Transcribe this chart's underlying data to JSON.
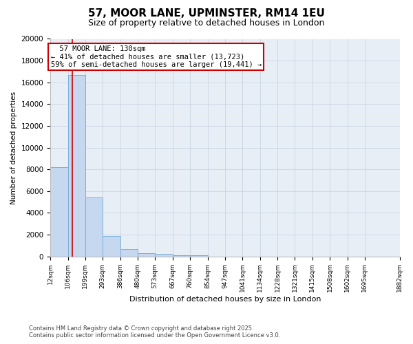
{
  "title": "57, MOOR LANE, UPMINSTER, RM14 1EU",
  "subtitle": "Size of property relative to detached houses in London",
  "xlabel": "Distribution of detached houses by size in London",
  "ylabel": "Number of detached properties",
  "bar_values": [
    8200,
    16700,
    5400,
    1850,
    700,
    310,
    230,
    130,
    100,
    0,
    0,
    0,
    0,
    0,
    0,
    0,
    0,
    0,
    0
  ],
  "bin_edges": [
    12,
    106,
    199,
    293,
    386,
    480,
    573,
    667,
    760,
    854,
    947,
    1041,
    1134,
    1228,
    1321,
    1415,
    1508,
    1602,
    1695,
    1882
  ],
  "x_labels": [
    "12sqm",
    "106sqm",
    "199sqm",
    "293sqm",
    "386sqm",
    "480sqm",
    "573sqm",
    "667sqm",
    "760sqm",
    "854sqm",
    "947sqm",
    "1041sqm",
    "1134sqm",
    "1228sqm",
    "1321sqm",
    "1415sqm",
    "1508sqm",
    "1602sqm",
    "1695sqm",
    "1882sqm"
  ],
  "bar_color": "#c5d8ef",
  "bar_edge_color": "#7bafd4",
  "red_line_x": 130,
  "red_line_color": "#cc0000",
  "annotation_title": "57 MOOR LANE: 130sqm",
  "annotation_line1": "← 41% of detached houses are smaller (13,723)",
  "annotation_line2": "59% of semi-detached houses are larger (19,441) →",
  "annotation_box_color": "#cc0000",
  "ylim": [
    0,
    20000
  ],
  "yticks": [
    0,
    2000,
    4000,
    6000,
    8000,
    10000,
    12000,
    14000,
    16000,
    18000,
    20000
  ],
  "footer_line1": "Contains HM Land Registry data © Crown copyright and database right 2025.",
  "footer_line2": "Contains public sector information licensed under the Open Government Licence v3.0.",
  "bg_color": "#ffffff",
  "plot_bg_color": "#e8eef6",
  "grid_color": "#c8d4e4",
  "title_fontsize": 11,
  "subtitle_fontsize": 9,
  "annotation_fontsize": 7.5
}
